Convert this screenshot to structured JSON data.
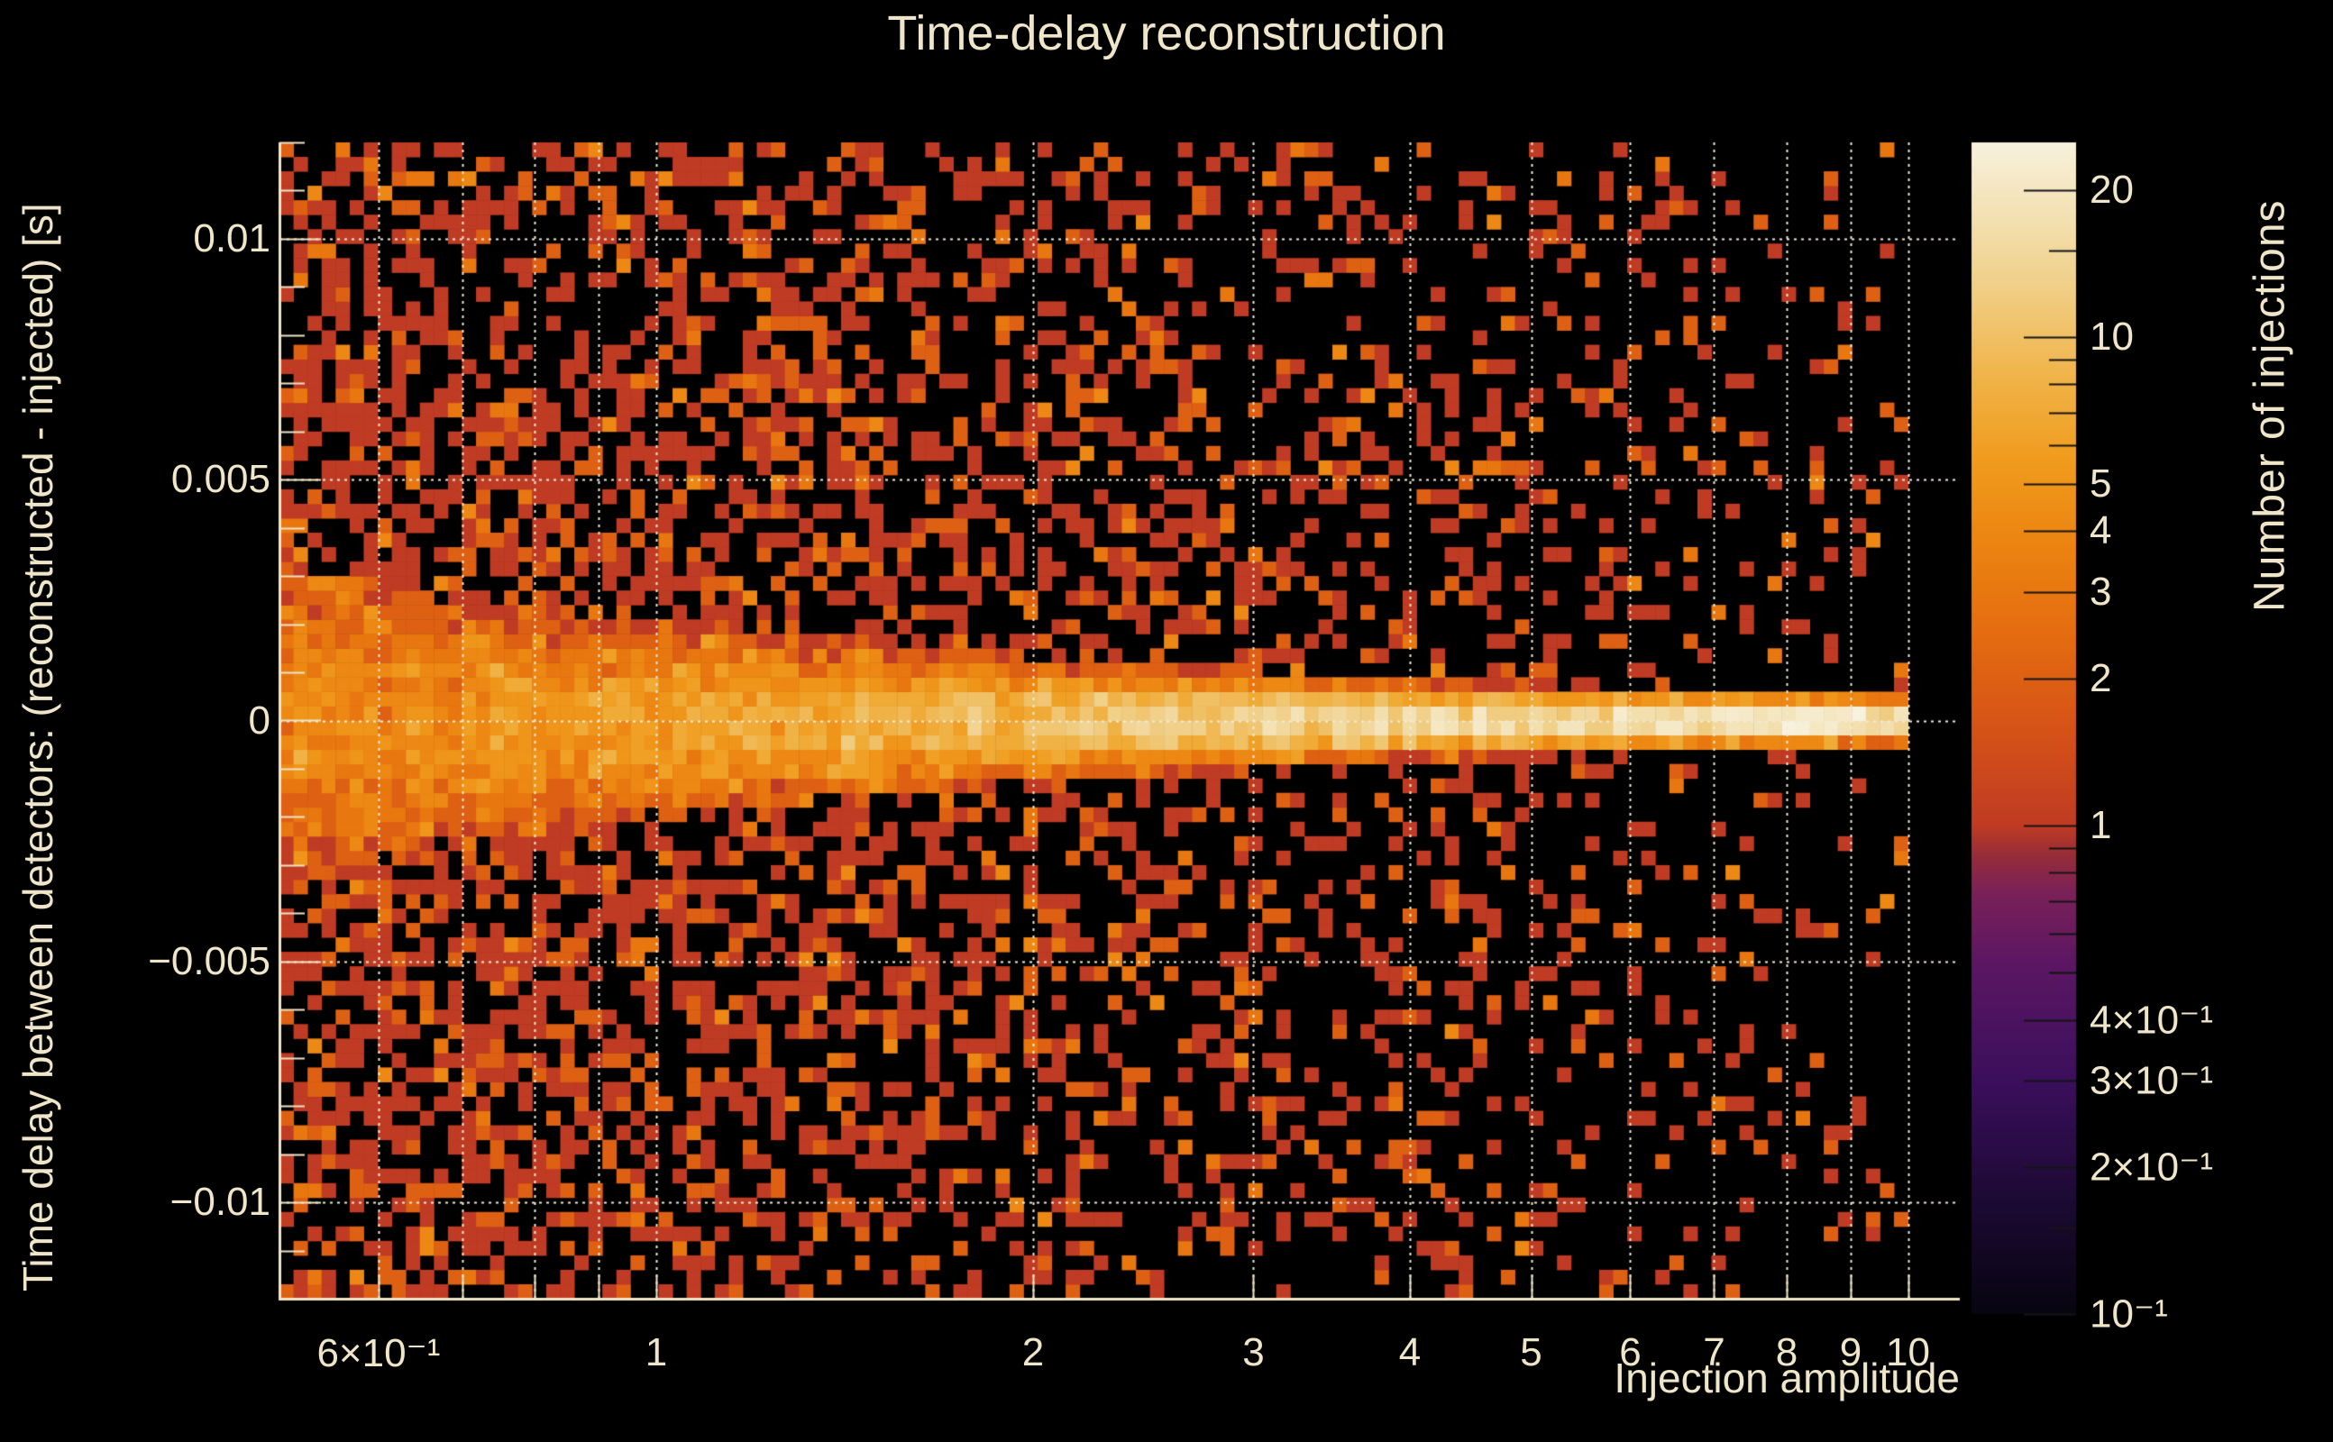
{
  "chart_data": {
    "type": "heatmap",
    "title": "Time-delay reconstruction",
    "xlabel": "Injection amplitude",
    "ylabel": "Time delay between detectors: (reconstructed - injected) [s]",
    "zlabel": "Number of injections",
    "x_scale": "log",
    "x_range": [
      0.5,
      11.0
    ],
    "x_data_range": [
      0.5,
      10.0
    ],
    "y_scale": "linear",
    "y_range": [
      -0.012,
      0.012
    ],
    "z_scale": "log",
    "z_range": [
      0.1,
      25
    ],
    "x_bins": 116,
    "y_bins": 80,
    "grid": true,
    "background_color": "#000000",
    "axis_color": "#efe5c8",
    "grid_color": "#f2ebd8",
    "x_ticks": [
      {
        "value": 0.6,
        "label": "6×10⁻¹"
      },
      {
        "value": 1,
        "label": "1"
      },
      {
        "value": 2,
        "label": "2"
      },
      {
        "value": 3,
        "label": "3"
      },
      {
        "value": 4,
        "label": "4"
      },
      {
        "value": 5,
        "label": "5"
      },
      {
        "value": 6,
        "label": "6"
      },
      {
        "value": 7,
        "label": "7"
      },
      {
        "value": 8,
        "label": "8"
      },
      {
        "value": 9,
        "label": "9"
      },
      {
        "value": 10,
        "label": "10"
      }
    ],
    "x_grid_values": [
      0.6,
      0.7,
      0.8,
      0.9,
      1,
      2,
      3,
      4,
      5,
      6,
      7,
      8,
      9,
      10
    ],
    "y_ticks": [
      {
        "value": 0.01,
        "label": "0.01"
      },
      {
        "value": 0.005,
        "label": "0.005"
      },
      {
        "value": 0,
        "label": "0"
      },
      {
        "value": -0.005,
        "label": "−0.005"
      },
      {
        "value": -0.01,
        "label": "−0.01"
      }
    ],
    "y_minor_step": 0.001,
    "z_ticks": [
      {
        "value": 20,
        "label": "20"
      },
      {
        "value": 10,
        "label": "10"
      },
      {
        "value": 5,
        "label": "5"
      },
      {
        "value": 4,
        "label": "4"
      },
      {
        "value": 3,
        "label": "3"
      },
      {
        "value": 2,
        "label": "2"
      },
      {
        "value": 1,
        "label": "1"
      },
      {
        "value": 0.4,
        "label": "4×10⁻¹"
      },
      {
        "value": 0.3,
        "label": "3×10⁻¹"
      },
      {
        "value": 0.2,
        "label": "2×10⁻¹"
      },
      {
        "value": 0.1,
        "label": "10⁻¹"
      }
    ],
    "z_minor_ticks": [
      15,
      9,
      8,
      7,
      6,
      0.9,
      0.8,
      0.7,
      0.6,
      0.5,
      0.15
    ],
    "palette_stops": [
      [
        0.0,
        "#070510"
      ],
      [
        0.1,
        "#1d0a35"
      ],
      [
        0.2,
        "#3b0f5c"
      ],
      [
        0.3,
        "#5c1763"
      ],
      [
        0.36,
        "#7a2158"
      ],
      [
        0.39,
        "#952c3a"
      ],
      [
        0.417,
        "#c03b23"
      ],
      [
        0.5,
        "#d65317"
      ],
      [
        0.58,
        "#e56c10"
      ],
      [
        0.66,
        "#ec8511"
      ],
      [
        0.73,
        "#f09c1e"
      ],
      [
        0.8,
        "#f0b449"
      ],
      [
        0.87,
        "#f0cd82"
      ],
      [
        0.93,
        "#f3dfae"
      ],
      [
        1.0,
        "#f8f1dd"
      ]
    ],
    "distribution": {
      "seed": 1337,
      "background": {
        "fill_at_amp_min": 0.6,
        "fill_drop": 0.52,
        "fill_falloff_exp": 1.5,
        "vertical_taper": 0.3,
        "count_probs": {
          "1": 0.68,
          "2": 0.22,
          "3": 0.07,
          "4": 0.03
        }
      },
      "core_band": {
        "center": 0.0,
        "sigma_scale": 0.002,
        "sigma_decay_per_unit": 1.35,
        "sigma_floor": 0.00013,
        "peak_base": 3.2,
        "peak_gain": 21,
        "peak_exp": 1.6,
        "column_jitter": 0.4,
        "cell_jitter": 0.6,
        "max_count": 25
      }
    }
  }
}
